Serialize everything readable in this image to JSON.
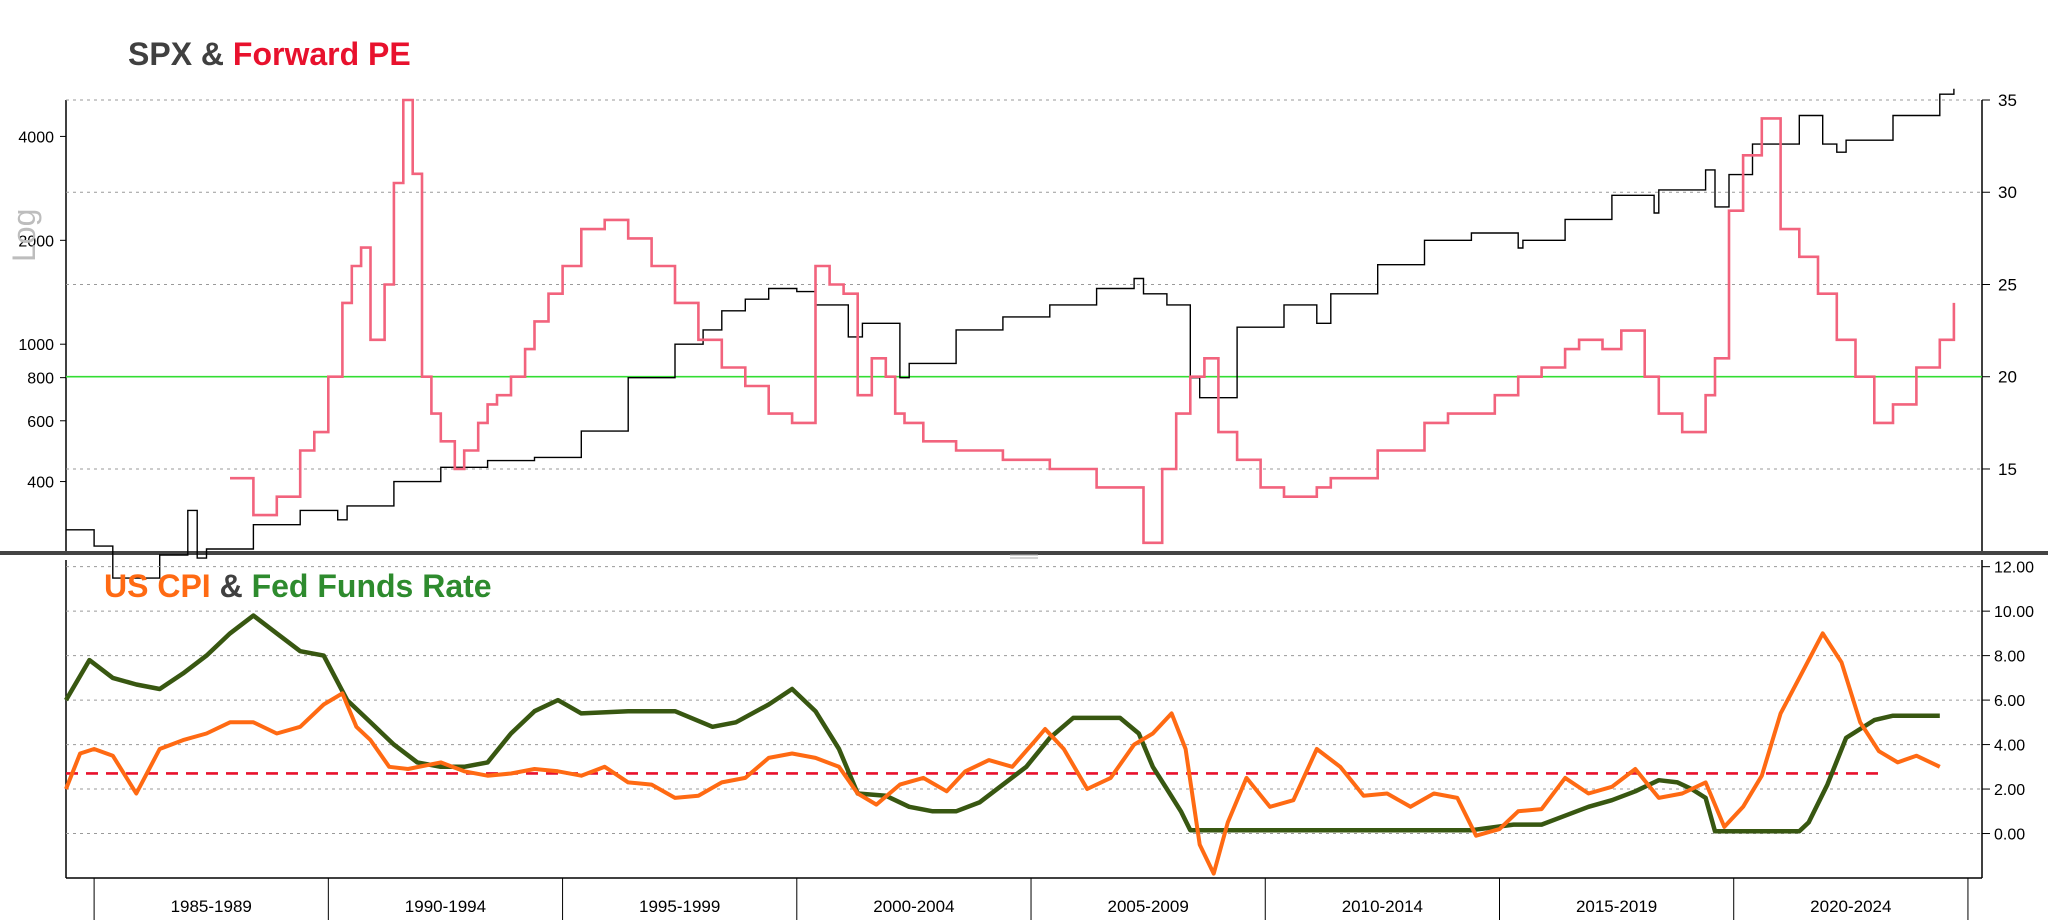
{
  "top_title": {
    "part1": "SPX",
    "amp": " & ",
    "part2": "Forward PE"
  },
  "bottom_title": {
    "part1": "US CPI",
    "amp": " & ",
    "part2": "Fed Funds Rate"
  },
  "log_label": "Log",
  "colors": {
    "spx": "#000000",
    "pe": "#f2637d",
    "cpi": "#ff6a13",
    "ffr": "#385711",
    "pe_ref": "#33dd33",
    "cpi_ref": "#e8112d",
    "divider": "#444444"
  },
  "chart_data": [
    {
      "type": "line",
      "title": "SPX & Forward PE",
      "ylabel": "Log",
      "x_ticks": [
        "1985-1989",
        "1990-1994",
        "1995-1999",
        "2000-2004",
        "2005-2009",
        "2010-2014",
        "2015-2019",
        "2020-2024"
      ],
      "xlim": [
        1985.0,
        2025.9
      ],
      "y_left": {
        "scale": "log",
        "ylim": [
          250,
          5100
        ],
        "tick_labels": [
          "400",
          "600",
          "800",
          "1000",
          "2000",
          "4000"
        ],
        "tick_values": [
          400,
          600,
          800,
          1000,
          2000,
          4000
        ]
      },
      "y_right": {
        "ylim": [
          10.5,
          35
        ],
        "tick_labels": [
          "15",
          "20",
          "25",
          "30",
          "35"
        ],
        "tick_values": [
          15,
          20,
          25,
          30,
          35
        ]
      },
      "reference_line": {
        "axis": "right",
        "value": 20
      },
      "series": [
        {
          "name": "SPX",
          "axis": "left",
          "x": [
            1985.0,
            1985.6,
            1986.0,
            1987.0,
            1987.6,
            1987.8,
            1988.0,
            1989.0,
            1990.0,
            1990.8,
            1991.0,
            1992.0,
            1993.0,
            1994.0,
            1995.0,
            1996.0,
            1997.0,
            1998.0,
            1998.6,
            1999.0,
            1999.5,
            2000.0,
            2000.6,
            2001.0,
            2001.7,
            2002.0,
            2002.8,
            2003.0,
            2004.0,
            2005.0,
            2006.0,
            2007.0,
            2007.8,
            2008.0,
            2008.5,
            2009.0,
            2009.2,
            2010.0,
            2011.0,
            2011.7,
            2012.0,
            2013.0,
            2014.0,
            2015.0,
            2016.0,
            2016.1,
            2017.0,
            2018.0,
            2018.9,
            2019.0,
            2020.0,
            2020.2,
            2020.5,
            2021.0,
            2022.0,
            2022.5,
            2022.8,
            2023.0,
            2024.0,
            2025.0,
            2025.3
          ],
          "y": [
            290,
            260,
            210,
            245,
            330,
            240,
            255,
            300,
            330,
            310,
            340,
            400,
            440,
            460,
            470,
            560,
            800,
            1000,
            1100,
            1250,
            1350,
            1450,
            1420,
            1300,
            1050,
            1150,
            800,
            880,
            1100,
            1200,
            1300,
            1450,
            1550,
            1400,
            1300,
            800,
            700,
            1120,
            1300,
            1150,
            1400,
            1700,
            2000,
            2100,
            1900,
            2000,
            2300,
            2700,
            2400,
            2800,
            3200,
            2500,
            3100,
            3800,
            4600,
            3800,
            3600,
            3900,
            4600,
            5300,
            5500
          ]
        },
        {
          "name": "Forward PE",
          "axis": "right",
          "x": [
            1988.5,
            1989.0,
            1989.5,
            1990.0,
            1990.3,
            1990.6,
            1990.9,
            1991.1,
            1991.3,
            1991.5,
            1991.8,
            1992.0,
            1992.2,
            1992.4,
            1992.6,
            1992.8,
            1993.0,
            1993.3,
            1993.5,
            1993.8,
            1994.0,
            1994.2,
            1994.5,
            1994.8,
            1995.0,
            1995.3,
            1995.6,
            1996.0,
            1996.5,
            1997.0,
            1997.5,
            1998.0,
            1998.5,
            1999.0,
            1999.5,
            2000.0,
            2000.5,
            2001.0,
            2001.3,
            2001.6,
            2001.9,
            2002.2,
            2002.5,
            2002.7,
            2002.9,
            2003.3,
            2004.0,
            2005.0,
            2006.0,
            2007.0,
            2008.0,
            2008.4,
            2008.7,
            2009.0,
            2009.3,
            2009.6,
            2010.0,
            2010.5,
            2011.0,
            2011.7,
            2012.0,
            2013.0,
            2014.0,
            2014.5,
            2015.0,
            2015.5,
            2016.0,
            2016.5,
            2017.0,
            2017.3,
            2017.8,
            2018.2,
            2018.7,
            2019.0,
            2019.5,
            2020.0,
            2020.2,
            2020.5,
            2020.8,
            2021.2,
            2021.6,
            2022.0,
            2022.4,
            2022.8,
            2023.2,
            2023.6,
            2024.0,
            2024.5,
            2025.0,
            2025.3
          ],
          "y": [
            14.5,
            12.5,
            13.5,
            16.0,
            17.0,
            20.0,
            24.0,
            26.0,
            27.0,
            22.0,
            25.0,
            30.5,
            35.0,
            31.0,
            20.0,
            18.0,
            16.5,
            15.0,
            16.0,
            17.5,
            18.5,
            19.0,
            20.0,
            21.5,
            23.0,
            24.5,
            26.0,
            28.0,
            28.5,
            27.5,
            26.0,
            24.0,
            22.0,
            20.5,
            19.5,
            18.0,
            17.5,
            26.0,
            25.0,
            24.5,
            19.0,
            21.0,
            20.0,
            18.0,
            17.5,
            16.5,
            16.0,
            15.5,
            15.0,
            14.0,
            11.0,
            15.0,
            18.0,
            20.0,
            21.0,
            17.0,
            15.5,
            14.0,
            13.5,
            14.0,
            14.5,
            16.0,
            17.5,
            18.0,
            18.0,
            19.0,
            20.0,
            20.5,
            21.5,
            22.0,
            21.5,
            22.5,
            20.0,
            18.0,
            17.0,
            19.0,
            21.0,
            29.0,
            32.0,
            34.0,
            28.0,
            26.5,
            24.5,
            22.0,
            20.0,
            17.5,
            18.5,
            20.5,
            22.0,
            24.0
          ]
        }
      ]
    },
    {
      "type": "line",
      "title": "US CPI & Fed Funds Rate",
      "x_ticks": [
        "1985-1989",
        "1990-1994",
        "1995-1999",
        "2000-2004",
        "2005-2009",
        "2010-2014",
        "2015-2019",
        "2020-2024"
      ],
      "xlim": [
        1985.0,
        2025.9
      ],
      "y_right": {
        "ylim": [
          -2.0,
          12.3
        ],
        "tick_labels": [
          "0.00",
          "2.00",
          "4.00",
          "6.00",
          "8.00",
          "10.00",
          "12.00"
        ],
        "tick_values": [
          0,
          2,
          4,
          6,
          8,
          10,
          12
        ]
      },
      "reference_line": {
        "axis": "right",
        "value": 2.7
      },
      "series": [
        {
          "name": "US CPI",
          "x": [
            1985.0,
            1985.3,
            1985.6,
            1986.0,
            1986.5,
            1987.0,
            1987.5,
            1988.0,
            1988.5,
            1989.0,
            1989.5,
            1990.0,
            1990.5,
            1990.9,
            1991.2,
            1991.5,
            1991.9,
            1992.3,
            1993.0,
            1993.5,
            1994.0,
            1994.5,
            1995.0,
            1995.5,
            1996.0,
            1996.5,
            1997.0,
            1997.5,
            1998.0,
            1998.5,
            1999.0,
            1999.5,
            2000.0,
            2000.5,
            2001.0,
            2001.5,
            2001.9,
            2002.3,
            2002.8,
            2003.3,
            2003.8,
            2004.2,
            2004.7,
            2005.2,
            2005.7,
            2005.9,
            2006.3,
            2006.8,
            2007.3,
            2007.8,
            2008.2,
            2008.6,
            2008.9,
            2009.2,
            2009.5,
            2009.8,
            2010.2,
            2010.7,
            2011.2,
            2011.7,
            2012.2,
            2012.7,
            2013.2,
            2013.7,
            2014.2,
            2014.7,
            2015.1,
            2015.6,
            2016.0,
            2016.5,
            2017.0,
            2017.5,
            2018.0,
            2018.5,
            2019.0,
            2019.5,
            2020.0,
            2020.4,
            2020.8,
            2021.2,
            2021.6,
            2022.0,
            2022.5,
            2022.9,
            2023.3,
            2023.7,
            2024.1,
            2024.5,
            2025.0
          ],
          "y": [
            2.0,
            3.6,
            3.8,
            3.5,
            1.8,
            3.8,
            4.2,
            4.5,
            5.0,
            5.0,
            4.5,
            4.8,
            5.8,
            6.3,
            4.8,
            4.2,
            3.0,
            2.9,
            3.2,
            2.8,
            2.6,
            2.7,
            2.9,
            2.8,
            2.6,
            3.0,
            2.3,
            2.2,
            1.6,
            1.7,
            2.3,
            2.5,
            3.4,
            3.6,
            3.4,
            3.0,
            1.8,
            1.3,
            2.2,
            2.5,
            1.9,
            2.8,
            3.3,
            3.0,
            4.2,
            4.7,
            3.8,
            2.0,
            2.5,
            4.0,
            4.5,
            5.4,
            3.8,
            -0.5,
            -1.8,
            0.5,
            2.5,
            1.2,
            1.5,
            3.8,
            3.0,
            1.7,
            1.8,
            1.2,
            1.8,
            1.6,
            -0.1,
            0.2,
            1.0,
            1.1,
            2.5,
            1.8,
            2.1,
            2.9,
            1.6,
            1.8,
            2.3,
            0.3,
            1.2,
            2.6,
            5.4,
            7.0,
            9.0,
            7.7,
            5.0,
            3.7,
            3.2,
            3.5,
            3.0
          ],
          "dash": "solid"
        },
        {
          "name": "Fed Funds Rate",
          "x": [
            1985.0,
            1985.5,
            1986.0,
            1986.5,
            1987.0,
            1987.5,
            1988.0,
            1988.5,
            1989.0,
            1989.5,
            1990.0,
            1990.5,
            1991.0,
            1991.5,
            1992.0,
            1992.5,
            1993.0,
            1993.5,
            1994.0,
            1994.5,
            1995.0,
            1995.5,
            1996.0,
            1997.0,
            1998.0,
            1998.8,
            1999.3,
            2000.0,
            2000.5,
            2001.0,
            2001.5,
            2001.9,
            2002.5,
            2003.0,
            2003.5,
            2004.0,
            2004.5,
            2005.5,
            2006.0,
            2006.5,
            2007.0,
            2007.5,
            2007.9,
            2008.2,
            2008.5,
            2008.8,
            2009.0,
            2010.0,
            2012.0,
            2015.0,
            2015.9,
            2016.5,
            2017.0,
            2017.5,
            2018.0,
            2018.5,
            2019.0,
            2019.4,
            2019.7,
            2020.0,
            2020.2,
            2021.0,
            2022.0,
            2022.2,
            2022.6,
            2023.0,
            2023.6,
            2024.0,
            2024.6,
            2025.0
          ],
          "y": [
            6.0,
            7.8,
            7.0,
            6.7,
            6.5,
            7.2,
            8.0,
            9.0,
            9.8,
            9.0,
            8.2,
            8.0,
            6.0,
            5.0,
            4.0,
            3.2,
            3.0,
            3.0,
            3.2,
            4.5,
            5.5,
            6.0,
            5.4,
            5.5,
            5.5,
            4.8,
            5.0,
            5.8,
            6.5,
            5.5,
            3.8,
            1.8,
            1.7,
            1.2,
            1.0,
            1.0,
            1.4,
            3.0,
            4.3,
            5.2,
            5.2,
            5.2,
            4.5,
            3.0,
            2.0,
            1.0,
            0.15,
            0.15,
            0.15,
            0.15,
            0.4,
            0.4,
            0.8,
            1.2,
            1.5,
            1.9,
            2.4,
            2.3,
            2.0,
            1.6,
            0.1,
            0.1,
            0.1,
            0.5,
            2.2,
            4.3,
            5.1,
            5.3,
            5.3,
            5.3
          ],
          "dash": "solid"
        }
      ]
    }
  ]
}
